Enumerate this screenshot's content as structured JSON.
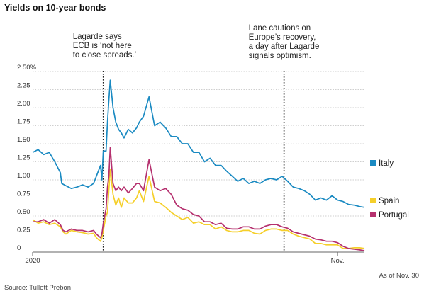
{
  "chart_data": {
    "type": "line",
    "title": "Yields on 10-year bonds",
    "source": "Source: Tullett Prebon",
    "as_of": "As of Nov. 30",
    "x_tick_labels": [
      "2020",
      "Nov."
    ],
    "x_ticks": [
      0,
      11
    ],
    "xlim": [
      0,
      11.97
    ],
    "y_tick_labels": [
      "2.50%",
      "2.25",
      "2.00",
      "1.75",
      "1.50",
      "1.25",
      "1.00",
      "0.75",
      "0.50",
      "0.25",
      "0"
    ],
    "y_tick_values": [
      2.5,
      2.25,
      2.0,
      1.75,
      1.5,
      1.25,
      1.0,
      0.75,
      0.5,
      0.25,
      0
    ],
    "ylim": [
      0,
      2.5
    ],
    "x_unit": "months since Jan. 1, 2020",
    "annotations": [
      {
        "x": 2.55,
        "lines": [
          "Lagarde says",
          "ECB is ‘not here",
          "to close spreads.’"
        ]
      },
      {
        "x": 9.07,
        "lines": [
          "Lane cautions on",
          "Europe’s recovery,",
          "a day after Lagarde",
          "signals optimism."
        ]
      }
    ],
    "series": [
      {
        "name": "Italy",
        "color": "#1a8ac2",
        "x": [
          0,
          0.2,
          0.4,
          0.6,
          0.8,
          1.0,
          1.05,
          1.2,
          1.4,
          1.6,
          1.8,
          2.0,
          2.2,
          2.3,
          2.45,
          2.5,
          2.55,
          2.65,
          2.7,
          2.75,
          2.8,
          2.9,
          3.0,
          3.1,
          3.2,
          3.3,
          3.45,
          3.6,
          3.75,
          3.85,
          4.0,
          4.2,
          4.4,
          4.6,
          4.8,
          5.0,
          5.2,
          5.4,
          5.6,
          5.8,
          6.0,
          6.2,
          6.4,
          6.6,
          6.8,
          7.0,
          7.2,
          7.4,
          7.6,
          7.8,
          8.0,
          8.2,
          8.4,
          8.6,
          8.8,
          9.0,
          9.2,
          9.4,
          9.6,
          9.8,
          10.0,
          10.2,
          10.4,
          10.6,
          10.8,
          11.0,
          11.2,
          11.4,
          11.6,
          11.8,
          11.97
        ],
        "y": [
          1.38,
          1.42,
          1.35,
          1.38,
          1.25,
          1.1,
          0.95,
          0.92,
          0.88,
          0.9,
          0.93,
          0.9,
          0.95,
          1.05,
          1.2,
          1.0,
          1.4,
          1.4,
          1.8,
          2.1,
          2.38,
          2.0,
          1.8,
          1.7,
          1.65,
          1.58,
          1.7,
          1.65,
          1.72,
          1.8,
          1.88,
          2.15,
          1.75,
          1.8,
          1.72,
          1.6,
          1.6,
          1.5,
          1.5,
          1.38,
          1.38,
          1.25,
          1.3,
          1.2,
          1.2,
          1.12,
          1.05,
          0.98,
          1.02,
          0.95,
          0.98,
          0.95,
          1.0,
          1.02,
          1.0,
          1.05,
          0.98,
          0.9,
          0.88,
          0.85,
          0.8,
          0.72,
          0.75,
          0.72,
          0.78,
          0.72,
          0.7,
          0.66,
          0.65,
          0.63,
          0.62
        ]
      },
      {
        "name": "Spain",
        "color": "#f5cf2a",
        "x": [
          0,
          0.2,
          0.4,
          0.6,
          0.8,
          1.0,
          1.1,
          1.2,
          1.4,
          1.6,
          1.8,
          2.0,
          2.2,
          2.3,
          2.45,
          2.5,
          2.55,
          2.65,
          2.7,
          2.75,
          2.8,
          2.9,
          3.0,
          3.1,
          3.2,
          3.3,
          3.45,
          3.6,
          3.75,
          3.85,
          4.0,
          4.2,
          4.4,
          4.6,
          4.8,
          5.0,
          5.2,
          5.4,
          5.6,
          5.8,
          6.0,
          6.2,
          6.4,
          6.6,
          6.8,
          7.0,
          7.2,
          7.4,
          7.6,
          7.8,
          8.0,
          8.2,
          8.4,
          8.6,
          8.8,
          9.0,
          9.2,
          9.4,
          9.6,
          9.8,
          10.0,
          10.2,
          10.4,
          10.6,
          10.8,
          11.0,
          11.2,
          11.4,
          11.6,
          11.8,
          11.97
        ],
        "y": [
          0.45,
          0.4,
          0.42,
          0.38,
          0.4,
          0.35,
          0.28,
          0.25,
          0.3,
          0.28,
          0.27,
          0.25,
          0.26,
          0.2,
          0.15,
          0.2,
          0.3,
          0.5,
          0.55,
          0.85,
          1.15,
          0.8,
          0.65,
          0.75,
          0.62,
          0.75,
          0.68,
          0.68,
          0.75,
          0.85,
          0.7,
          1.05,
          0.7,
          0.68,
          0.62,
          0.55,
          0.5,
          0.45,
          0.48,
          0.4,
          0.42,
          0.38,
          0.38,
          0.32,
          0.35,
          0.3,
          0.28,
          0.28,
          0.3,
          0.3,
          0.26,
          0.25,
          0.3,
          0.32,
          0.32,
          0.3,
          0.3,
          0.25,
          0.22,
          0.2,
          0.18,
          0.12,
          0.12,
          0.1,
          0.1,
          0.1,
          0.05,
          0.05,
          0.06,
          0.06,
          0.05
        ]
      },
      {
        "name": "Portugal",
        "color": "#b5306e",
        "x": [
          0,
          0.2,
          0.4,
          0.6,
          0.8,
          1.0,
          1.1,
          1.2,
          1.4,
          1.6,
          1.8,
          2.0,
          2.2,
          2.3,
          2.45,
          2.5,
          2.55,
          2.65,
          2.7,
          2.75,
          2.8,
          2.9,
          3.0,
          3.1,
          3.2,
          3.3,
          3.45,
          3.6,
          3.75,
          3.85,
          4.0,
          4.2,
          4.4,
          4.6,
          4.8,
          5.0,
          5.2,
          5.4,
          5.6,
          5.8,
          6.0,
          6.2,
          6.4,
          6.6,
          6.8,
          7.0,
          7.2,
          7.4,
          7.6,
          7.8,
          8.0,
          8.2,
          8.4,
          8.6,
          8.8,
          9.0,
          9.2,
          9.4,
          9.6,
          9.8,
          10.0,
          10.2,
          10.4,
          10.6,
          10.8,
          11.0,
          11.2,
          11.4,
          11.6,
          11.8,
          11.97
        ],
        "y": [
          0.42,
          0.42,
          0.45,
          0.4,
          0.45,
          0.38,
          0.3,
          0.28,
          0.32,
          0.3,
          0.3,
          0.28,
          0.3,
          0.25,
          0.2,
          0.25,
          0.4,
          0.6,
          0.9,
          1.05,
          1.45,
          0.95,
          0.85,
          0.9,
          0.85,
          0.9,
          0.82,
          0.88,
          0.95,
          0.95,
          0.85,
          1.28,
          0.9,
          0.85,
          0.88,
          0.8,
          0.65,
          0.6,
          0.58,
          0.52,
          0.5,
          0.42,
          0.42,
          0.38,
          0.4,
          0.33,
          0.32,
          0.32,
          0.35,
          0.35,
          0.32,
          0.32,
          0.36,
          0.38,
          0.38,
          0.35,
          0.33,
          0.28,
          0.26,
          0.24,
          0.22,
          0.18,
          0.17,
          0.15,
          0.15,
          0.13,
          0.08,
          0.05,
          0.04,
          0.03,
          0.02
        ]
      }
    ]
  }
}
